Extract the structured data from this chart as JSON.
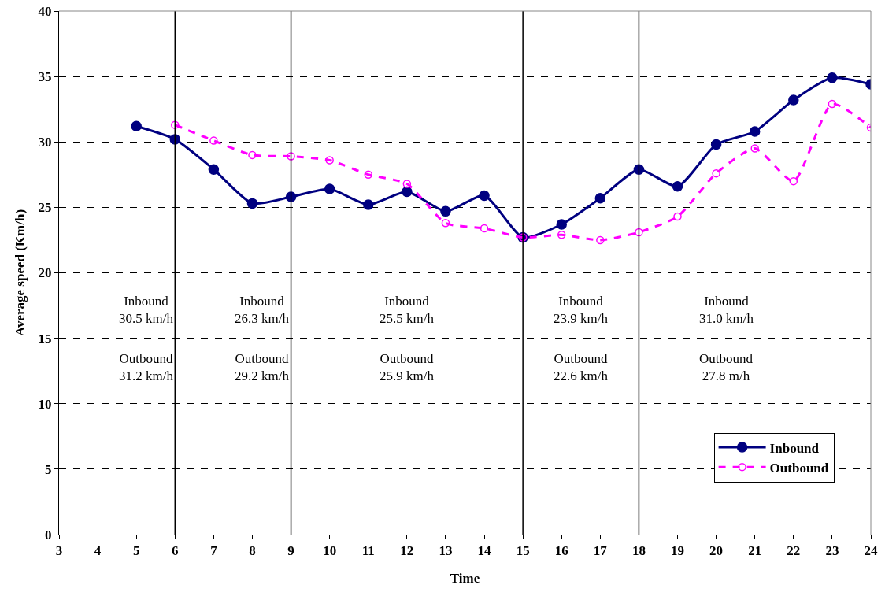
{
  "chart_data": {
    "type": "line",
    "xlabel": "Time",
    "ylabel": "Average speed (Km/h)",
    "x": [
      5,
      6,
      7,
      8,
      9,
      10,
      11,
      12,
      13,
      14,
      15,
      16,
      17,
      18,
      19,
      20,
      21,
      22,
      23,
      24
    ],
    "series": [
      {
        "name": "Inbound",
        "color": "#000080",
        "marker": "circle",
        "line_style": "solid",
        "values": [
          31.2,
          30.2,
          27.9,
          25.3,
          25.8,
          26.4,
          25.2,
          26.2,
          24.7,
          25.9,
          22.7,
          23.7,
          25.7,
          27.9,
          26.6,
          29.8,
          30.8,
          33.2,
          34.9,
          34.4
        ]
      },
      {
        "name": "Outbound",
        "color": "#ff00ff",
        "marker": "circle-open",
        "line_style": "dashed",
        "values": [
          null,
          31.3,
          30.1,
          29.0,
          28.9,
          28.6,
          27.5,
          26.8,
          23.8,
          23.4,
          22.7,
          22.9,
          22.5,
          23.1,
          24.3,
          27.6,
          29.5,
          27.0,
          32.9,
          31.1
        ]
      }
    ],
    "xlim": [
      3,
      24
    ],
    "xticks": [
      3,
      4,
      5,
      6,
      7,
      8,
      9,
      10,
      11,
      12,
      13,
      14,
      15,
      16,
      17,
      18,
      19,
      20,
      21,
      22,
      23,
      24
    ],
    "ylim": [
      0,
      40
    ],
    "yticks": [
      0,
      5,
      10,
      15,
      20,
      25,
      30,
      35,
      40
    ],
    "grid": "y",
    "legend": "bottom right",
    "ref_lines": [
      {
        "axis": "x",
        "value": 6,
        "color": "#000000",
        "line_style": "solid"
      },
      {
        "axis": "x",
        "value": 9,
        "color": "#000000",
        "line_style": "solid"
      },
      {
        "axis": "x",
        "value": 15,
        "color": "#000000",
        "line_style": "solid"
      },
      {
        "axis": "x",
        "value": 18,
        "color": "#000000",
        "line_style": "solid"
      }
    ],
    "annotations": [
      "Inbound\n30.5 km/h",
      "Outbound\n31.2 km/h",
      "Inbound\n26.3 km/h",
      "Outbound\n29.2 km/h",
      "Inbound\n25.5 km/h",
      "Outbound\n25.9 km/h",
      "Inbound\n23.9 km/h",
      "Outbound\n22.6 km/h",
      "Inbound\n31.0 km/h",
      "Outbound\n27.8 m/h"
    ]
  }
}
